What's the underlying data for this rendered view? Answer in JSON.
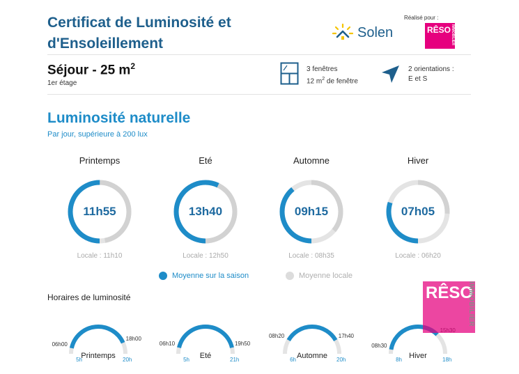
{
  "header": {
    "title_line1": "Certificat de Luminosité et",
    "title_line2": "d'Ensoleillement",
    "brand": "Solen",
    "realise_pour": "Réalisé pour :",
    "partner_logo_top": "RÊSO",
    "partner_logo_side": "IMMOBILIER"
  },
  "room": {
    "name": "Séjour - 25 m",
    "name_sup": "2",
    "floor": "1er étage",
    "windows_line1": "3 fenêtres",
    "windows_line2_pre": "12 m",
    "windows_line2_sup": "2",
    "windows_line2_post": " de fenêtre",
    "orient_line1": "2 orientations :",
    "orient_line2": "E et S"
  },
  "luminosity": {
    "title": "Luminosité naturelle",
    "subtitle": "Par jour, supérieure à 200 lux",
    "seasons": [
      {
        "name": "Printemps",
        "value": "11h55",
        "locale": "Locale : 11h10",
        "fraction": 0.5,
        "locale_fraction": 0.47
      },
      {
        "name": "Eté",
        "value": "13h40",
        "locale": "Locale : 12h50",
        "fraction": 0.57,
        "locale_fraction": 0.53
      },
      {
        "name": "Automne",
        "value": "09h15",
        "locale": "Locale : 08h35",
        "fraction": 0.39,
        "locale_fraction": 0.36
      },
      {
        "name": "Hiver",
        "value": "07h05",
        "locale": "Locale : 06h20",
        "fraction": 0.3,
        "locale_fraction": 0.26
      }
    ],
    "legend_saison": "Moyenne sur la saison",
    "legend_locale": "Moyenne locale"
  },
  "hours": {
    "title": "Horaires de luminosité",
    "gauges": [
      {
        "name": "Printemps",
        "start": "06h00",
        "end": "18h00",
        "scale_min": "5h",
        "scale_max": "20h",
        "start_frac": 0.067,
        "end_frac": 0.867
      },
      {
        "name": "Eté",
        "start": "06h10",
        "end": "19h50",
        "scale_min": "5h",
        "scale_max": "21h",
        "start_frac": 0.073,
        "end_frac": 0.927
      },
      {
        "name": "Automne",
        "start": "08h20",
        "end": "17h40",
        "scale_min": "6h",
        "scale_max": "20h",
        "start_frac": 0.167,
        "end_frac": 0.833
      },
      {
        "name": "Hiver",
        "start": "08h30",
        "end": "15h30",
        "scale_min": "8h",
        "scale_max": "18h",
        "start_frac": 0.05,
        "end_frac": 0.75
      }
    ]
  },
  "colors": {
    "primary": "#1e8cc8",
    "dark": "#1e5f8c",
    "track": "#e0e0e0",
    "brand_pink": "#e6007e",
    "sun": "#f5c400"
  }
}
